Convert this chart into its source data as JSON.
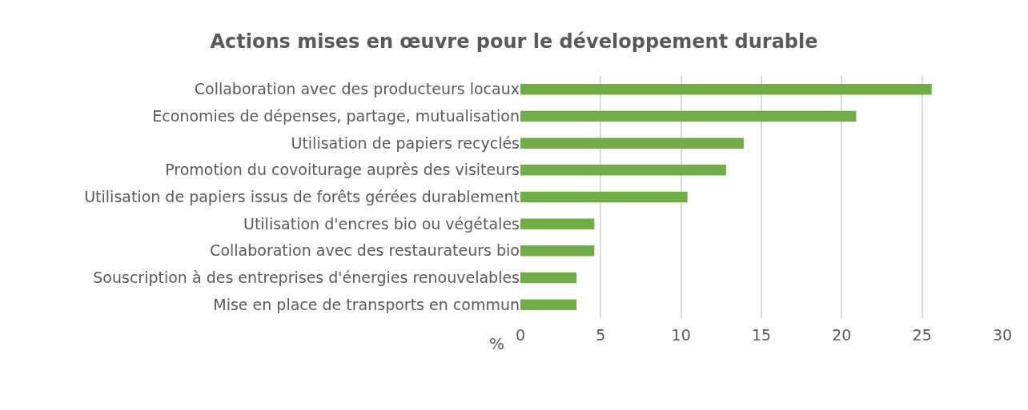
{
  "chart_data": {
    "type": "bar",
    "orientation": "horizontal",
    "title": "Actions mises en œuvre pour le développement durable",
    "xlabel": "%",
    "categories": [
      "Collaboration avec des producteurs locaux",
      "Economies de dépenses, partage, mutualisation",
      "Utilisation de papiers recyclés",
      "Promotion du covoiturage auprès des visiteurs",
      "Utilisation de papiers issus de forêts gérées durablement",
      "Utilisation d'encres bio ou végétales",
      "Collaboration avec des restaurateurs bio",
      "Souscription à des entreprises d'énergies renouvelables",
      "Mise en place de transports en commun"
    ],
    "values": [
      25.6,
      20.9,
      13.9,
      12.8,
      10.4,
      4.6,
      4.6,
      3.5,
      3.5
    ],
    "color": "#70ad47",
    "xlim": [
      0,
      30
    ],
    "xticks": [
      0,
      5,
      10,
      15,
      20,
      25,
      30
    ],
    "grid": "x"
  }
}
